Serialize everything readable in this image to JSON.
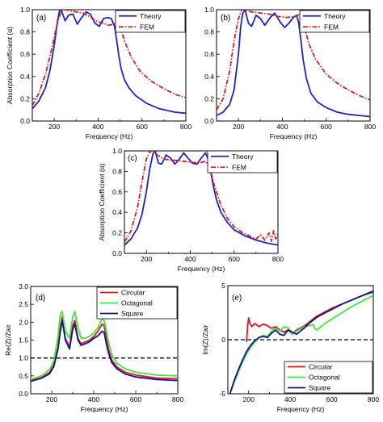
{
  "chart_data": [
    {
      "id": "a",
      "type": "line",
      "panel_label": "(a)",
      "xlabel": "Frequency (Hz)",
      "ylabel": "Absorption Coefficient (α)",
      "xlim": [
        100,
        800
      ],
      "ylim": [
        0,
        1.0
      ],
      "xticks": [
        200,
        400,
        600,
        800
      ],
      "yticks": [
        0.0,
        0.2,
        0.4,
        0.6,
        0.8,
        1.0
      ],
      "ytick_labels": [
        "0.0",
        "0.2",
        "0.4",
        "0.6",
        "0.8",
        "1.0"
      ],
      "legend_position": "top-right",
      "series": [
        {
          "name": "Theory",
          "color": "#1f22c8",
          "style": "solid",
          "x": [
            100,
            130,
            160,
            180,
            200,
            215,
            225,
            235,
            250,
            265,
            285,
            305,
            325,
            345,
            365,
            385,
            405,
            425,
            445,
            460,
            475,
            485,
            495,
            505,
            520,
            540,
            570,
            620,
            680,
            750,
            800
          ],
          "y": [
            0.11,
            0.18,
            0.3,
            0.45,
            0.68,
            0.9,
            1.0,
            0.98,
            0.9,
            0.95,
            0.96,
            0.87,
            0.93,
            0.98,
            0.96,
            0.88,
            0.85,
            0.92,
            0.93,
            0.92,
            0.85,
            0.72,
            0.58,
            0.47,
            0.37,
            0.3,
            0.23,
            0.16,
            0.11,
            0.08,
            0.07
          ]
        },
        {
          "name": "FEM",
          "color": "#d81e1e",
          "style": "dashdot",
          "x": [
            100,
            130,
            160,
            190,
            210,
            230,
            250,
            275,
            300,
            330,
            360,
            390,
            420,
            450,
            470,
            490,
            500,
            520,
            550,
            590,
            640,
            700,
            750,
            800
          ],
          "y": [
            0.14,
            0.25,
            0.42,
            0.66,
            0.85,
            0.98,
            1.0,
            0.99,
            0.98,
            0.97,
            0.94,
            0.9,
            0.88,
            0.86,
            0.87,
            0.91,
            0.85,
            0.72,
            0.58,
            0.45,
            0.36,
            0.29,
            0.24,
            0.21
          ]
        }
      ]
    },
    {
      "id": "b",
      "type": "line",
      "panel_label": "(b)",
      "xlabel": "Frequency (Hz)",
      "ylabel": "",
      "xlim": [
        100,
        800
      ],
      "ylim": [
        0,
        1.0
      ],
      "xticks": [
        200,
        400,
        600,
        800
      ],
      "yticks": [
        0.0,
        0.2,
        0.4,
        0.6,
        0.8,
        1.0
      ],
      "ytick_labels": [
        "0.0",
        "0.2",
        "0.4",
        "0.6",
        "0.8",
        "1.0"
      ],
      "legend_position": "top-right",
      "series": [
        {
          "name": "Theory",
          "color": "#1f22c8",
          "style": "solid",
          "x": [
            100,
            130,
            160,
            180,
            200,
            210,
            220,
            230,
            245,
            260,
            280,
            300,
            320,
            345,
            365,
            390,
            410,
            430,
            450,
            465,
            475,
            485,
            495,
            510,
            530,
            560,
            600,
            650,
            700,
            750,
            800
          ],
          "y": [
            0.05,
            0.08,
            0.15,
            0.28,
            0.6,
            0.85,
            0.97,
            1.0,
            0.88,
            0.85,
            0.95,
            0.92,
            0.86,
            0.93,
            0.97,
            0.89,
            0.84,
            0.88,
            0.93,
            0.95,
            0.88,
            0.72,
            0.55,
            0.38,
            0.25,
            0.17,
            0.12,
            0.08,
            0.06,
            0.05,
            0.04
          ]
        },
        {
          "name": "FEM",
          "color": "#d81e1e",
          "style": "dashdot",
          "x": [
            100,
            130,
            160,
            180,
            200,
            215,
            230,
            260,
            300,
            340,
            380,
            420,
            460,
            480,
            500,
            520,
            550,
            600,
            650,
            700,
            750,
            800
          ],
          "y": [
            0.1,
            0.2,
            0.45,
            0.72,
            0.92,
            1.0,
            1.0,
            0.98,
            0.97,
            0.96,
            0.94,
            0.93,
            0.94,
            0.96,
            0.85,
            0.7,
            0.56,
            0.42,
            0.34,
            0.28,
            0.23,
            0.19
          ]
        }
      ]
    },
    {
      "id": "c",
      "type": "line",
      "panel_label": "(c)",
      "xlabel": "Frequency (Hz)",
      "ylabel": "Absorption Coefficient (α)",
      "xlim": [
        100,
        800
      ],
      "ylim": [
        0,
        1.0
      ],
      "xticks": [
        200,
        400,
        600,
        800
      ],
      "yticks": [
        0.0,
        0.2,
        0.4,
        0.6,
        0.8,
        1.0
      ],
      "ytick_labels": [
        "0.0",
        "0.2",
        "0.4",
        "0.6",
        "0.8",
        "1.0"
      ],
      "legend_position": "top-right",
      "series": [
        {
          "name": "Theory",
          "color": "#1f22c8",
          "style": "solid",
          "x": [
            100,
            130,
            160,
            180,
            200,
            215,
            230,
            240,
            255,
            270,
            290,
            310,
            330,
            350,
            370,
            390,
            410,
            430,
            450,
            470,
            485,
            495,
            505,
            520,
            540,
            570,
            600,
            650,
            700,
            750,
            800
          ],
          "y": [
            0.08,
            0.14,
            0.25,
            0.38,
            0.6,
            0.82,
            0.97,
            1.0,
            0.88,
            0.87,
            0.96,
            0.93,
            0.87,
            0.92,
            0.98,
            0.93,
            0.88,
            0.87,
            0.93,
            0.98,
            0.9,
            0.78,
            0.66,
            0.52,
            0.4,
            0.3,
            0.23,
            0.17,
            0.13,
            0.1,
            0.08
          ]
        },
        {
          "name": "FEM",
          "color": "#d81e1e",
          "style": "dashdot",
          "x": [
            100,
            130,
            160,
            180,
            200,
            215,
            230,
            250,
            280,
            320,
            360,
            400,
            440,
            470,
            490,
            510,
            540,
            570,
            600,
            640,
            680,
            700,
            720,
            740,
            760,
            770,
            780,
            790,
            800
          ],
          "y": [
            0.11,
            0.22,
            0.45,
            0.7,
            0.92,
            0.99,
            1.0,
            0.96,
            0.92,
            0.91,
            0.9,
            0.89,
            0.88,
            0.9,
            0.83,
            0.66,
            0.47,
            0.34,
            0.26,
            0.2,
            0.16,
            0.14,
            0.18,
            0.13,
            0.2,
            0.12,
            0.22,
            0.14,
            0.19
          ]
        }
      ]
    },
    {
      "id": "d",
      "type": "line",
      "panel_label": "(d)",
      "xlabel": "Frequency (Hz)",
      "ylabel": "Re(Z)/Zair",
      "xlim": [
        100,
        800
      ],
      "ylim": [
        0,
        3
      ],
      "xticks": [
        200,
        400,
        600,
        800
      ],
      "yticks": [
        0.0,
        0.5,
        1.0,
        1.5,
        2.0,
        2.5,
        3.0
      ],
      "ytick_labels": [
        "0.0",
        "0.5",
        "1.0",
        "1.5",
        "2.0",
        "2.5",
        "3.0"
      ],
      "reference_line": 1.0,
      "legend_position": "top-right",
      "series": [
        {
          "name": "Circular",
          "color": "#e0141e",
          "style": "solid",
          "x": [
            100,
            150,
            190,
            210,
            230,
            240,
            250,
            265,
            285,
            300,
            310,
            325,
            340,
            360,
            380,
            400,
            420,
            440,
            450,
            460,
            470,
            485,
            510,
            550,
            600,
            700,
            800
          ],
          "y": [
            0.37,
            0.45,
            0.6,
            0.8,
            1.3,
            1.8,
            2.15,
            1.55,
            1.3,
            1.9,
            2.05,
            1.55,
            1.4,
            1.45,
            1.5,
            1.6,
            1.75,
            1.95,
            1.9,
            1.55,
            1.25,
            0.95,
            0.75,
            0.6,
            0.52,
            0.44,
            0.42
          ]
        },
        {
          "name": "Octagonal",
          "color": "#3ee63e",
          "style": "solid",
          "x": [
            100,
            150,
            190,
            210,
            230,
            240,
            250,
            265,
            285,
            300,
            310,
            325,
            340,
            360,
            380,
            400,
            420,
            440,
            450,
            460,
            470,
            485,
            510,
            550,
            600,
            700,
            800
          ],
          "y": [
            0.4,
            0.5,
            0.68,
            0.92,
            1.6,
            2.2,
            2.3,
            1.75,
            1.55,
            2.15,
            2.3,
            1.85,
            1.55,
            1.55,
            1.6,
            1.7,
            1.85,
            2.1,
            2.05,
            1.75,
            1.45,
            1.1,
            0.85,
            0.7,
            0.6,
            0.52,
            0.5
          ]
        },
        {
          "name": "Square",
          "color": "#14148c",
          "style": "solid",
          "x": [
            100,
            150,
            190,
            210,
            230,
            240,
            250,
            265,
            285,
            300,
            310,
            325,
            340,
            360,
            380,
            400,
            420,
            440,
            450,
            460,
            470,
            485,
            510,
            550,
            600,
            700,
            800
          ],
          "y": [
            0.35,
            0.43,
            0.56,
            0.76,
            1.25,
            1.7,
            2.05,
            1.5,
            1.25,
            1.8,
            1.95,
            1.5,
            1.35,
            1.4,
            1.45,
            1.55,
            1.62,
            1.75,
            1.7,
            1.4,
            1.15,
            0.88,
            0.7,
            0.55,
            0.47,
            0.4,
            0.37
          ]
        }
      ]
    },
    {
      "id": "e",
      "type": "line",
      "panel_label": "(e)",
      "xlabel": "Frequency (Hz)",
      "ylabel": "Im(Z)/Zair",
      "xlim": [
        100,
        800
      ],
      "ylim": [
        -5,
        5
      ],
      "xticks": [
        200,
        400,
        600,
        800
      ],
      "yticks": [
        -5,
        0,
        5
      ],
      "ytick_labels": [
        "-5",
        "0",
        "5"
      ],
      "reference_line": 0,
      "legend_position": "bottom-right",
      "series": [
        {
          "name": "Circular",
          "color": "#e0141e",
          "style": "solid",
          "x": [
            190,
            195,
            200,
            205,
            215,
            230,
            250,
            270,
            290,
            310,
            330,
            350,
            370,
            390,
            410,
            430,
            450,
            470,
            490,
            510,
            530,
            560,
            600,
            650,
            700,
            750,
            800
          ],
          "y": [
            -0.2,
            1.2,
            2.0,
            1.6,
            1.2,
            1.5,
            1.2,
            1.45,
            1.3,
            1.05,
            1.2,
            0.9,
            0.7,
            0.9,
            0.5,
            0.9,
            1.1,
            1.3,
            1.6,
            1.9,
            2.2,
            2.5,
            2.9,
            3.3,
            3.7,
            4.1,
            4.4
          ]
        },
        {
          "name": "Octagonal",
          "color": "#3ee63e",
          "style": "solid",
          "x": [
            110,
            130,
            150,
            170,
            190,
            210,
            230,
            250,
            270,
            290,
            310,
            330,
            350,
            370,
            390,
            410,
            430,
            450,
            470,
            490,
            510,
            520,
            530,
            560,
            600,
            650,
            700,
            750,
            800
          ],
          "y": [
            -5.0,
            -4.0,
            -3.0,
            -2.1,
            -1.3,
            -0.7,
            -0.2,
            0.2,
            0.4,
            0.3,
            0.8,
            1.1,
            0.8,
            1.2,
            1.1,
            0.5,
            0.8,
            1.0,
            1.2,
            1.3,
            1.4,
            1.0,
            0.9,
            1.4,
            1.9,
            2.5,
            3.1,
            3.6,
            4.1
          ]
        },
        {
          "name": "Square",
          "color": "#14148c",
          "style": "solid",
          "x": [
            110,
            130,
            150,
            170,
            190,
            210,
            230,
            250,
            270,
            290,
            310,
            330,
            350,
            370,
            390,
            410,
            430,
            450,
            470,
            490,
            510,
            530,
            560,
            600,
            650,
            700,
            750,
            800
          ],
          "y": [
            -5.0,
            -3.8,
            -2.8,
            -1.9,
            -1.1,
            -0.5,
            -0.1,
            0.2,
            0.3,
            0.2,
            0.6,
            0.9,
            0.5,
            0.4,
            0.9,
            0.7,
            0.5,
            0.8,
            1.1,
            1.5,
            1.8,
            2.1,
            2.4,
            2.8,
            3.3,
            3.7,
            4.1,
            4.5
          ]
        }
      ]
    }
  ]
}
